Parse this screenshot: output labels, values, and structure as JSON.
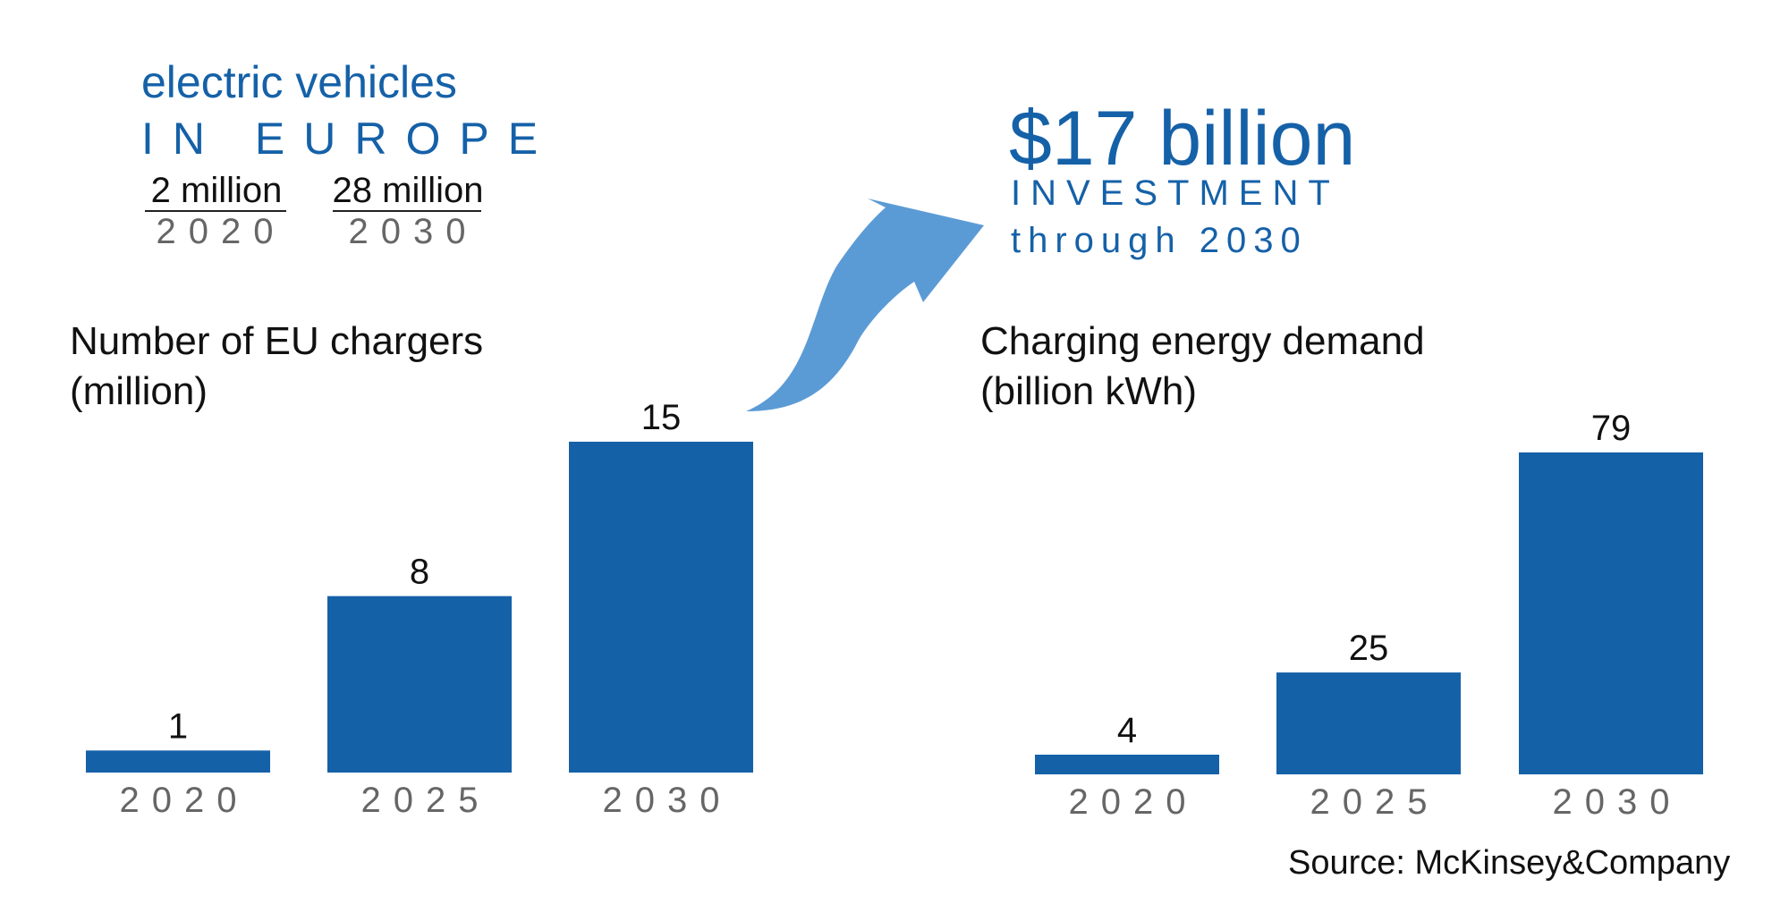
{
  "ev_panel": {
    "title": "electric vehicles",
    "subtitle": "IN EUROPE",
    "stats": [
      {
        "value": "2 million",
        "year": "2020"
      },
      {
        "value": "28 million",
        "year": "2030"
      }
    ]
  },
  "investment": {
    "amount": "$17 billion",
    "label": "INVESTMENT",
    "through": "through 2030"
  },
  "arrow_color": "#5b9bd5",
  "bar_color": "#1561a8",
  "source": "Source: McKinsey&Company",
  "chart_data": [
    {
      "type": "bar",
      "title": "Number of EU chargers",
      "subtitle": "(million)",
      "categories": [
        "2020",
        "2025",
        "2030"
      ],
      "values": [
        1,
        8,
        15
      ],
      "data_labels": [
        "1",
        "8",
        "15"
      ]
    },
    {
      "type": "bar",
      "title": "Charging energy demand",
      "subtitle": "(billion kWh)",
      "categories": [
        "2020",
        "2025",
        "2030"
      ],
      "values": [
        4,
        25,
        79
      ],
      "data_labels": [
        "4",
        "25",
        "79"
      ]
    }
  ]
}
